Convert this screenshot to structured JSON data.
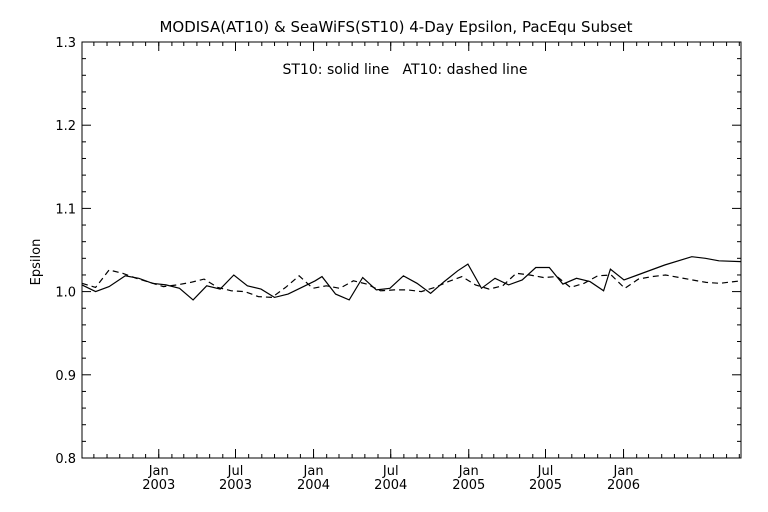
{
  "chart_data": {
    "type": "line",
    "title": "MODISA(AT10) & SeaWiFS(ST10) 4-Day Epsilon, PacEqu Subset",
    "annotation": "ST10: solid line   AT10: dashed line",
    "xlabel": "",
    "ylabel": "Epsilon",
    "xlim": [
      "2002-07-04",
      "2006-10-05"
    ],
    "ylim": [
      0.8,
      1.3
    ],
    "yticks": [
      "0.8",
      "0.9",
      "1.0",
      "1.1",
      "1.2",
      "1.3"
    ],
    "xticks": [
      {
        "date": "2003-01-01",
        "month": "Jan",
        "year": "2003"
      },
      {
        "date": "2003-07-01",
        "month": "Jul",
        "year": "2003"
      },
      {
        "date": "2004-01-01",
        "month": "Jan",
        "year": "2004"
      },
      {
        "date": "2004-07-01",
        "month": "Jul",
        "year": "2004"
      },
      {
        "date": "2005-01-01",
        "month": "Jan",
        "year": "2005"
      },
      {
        "date": "2005-07-01",
        "month": "Jul",
        "year": "2005"
      },
      {
        "date": "2006-01-01",
        "month": "Jan",
        "year": "2006"
      }
    ],
    "grid": false,
    "series": [
      {
        "name": "ST10",
        "style": "solid",
        "points": [
          [
            "2002-07-04",
            1.008
          ],
          [
            "2002-08-05",
            1.0
          ],
          [
            "2002-09-06",
            1.006
          ],
          [
            "2002-10-14",
            1.019
          ],
          [
            "2002-11-15",
            1.016
          ],
          [
            "2002-12-17",
            1.01
          ],
          [
            "2003-01-18",
            1.008
          ],
          [
            "2003-02-19",
            1.004
          ],
          [
            "2003-03-23",
            0.99
          ],
          [
            "2003-04-24",
            1.007
          ],
          [
            "2003-05-26",
            1.003
          ],
          [
            "2003-06-27",
            1.02
          ],
          [
            "2003-07-29",
            1.007
          ],
          [
            "2003-08-30",
            1.003
          ],
          [
            "2003-10-01",
            0.993
          ],
          [
            "2003-11-02",
            0.997
          ],
          [
            "2003-12-04",
            1.005
          ],
          [
            "2004-01-05",
            1.013
          ],
          [
            "2004-01-21",
            1.018
          ],
          [
            "2004-02-22",
            0.997
          ],
          [
            "2004-03-25",
            0.99
          ],
          [
            "2004-04-26",
            1.017
          ],
          [
            "2004-05-28",
            1.002
          ],
          [
            "2004-06-29",
            1.004
          ],
          [
            "2004-07-31",
            1.019
          ],
          [
            "2004-09-01",
            1.01
          ],
          [
            "2004-10-03",
            0.998
          ],
          [
            "2004-11-04",
            1.012
          ],
          [
            "2004-12-06",
            1.025
          ],
          [
            "2004-12-30",
            1.033
          ],
          [
            "2005-01-31",
            1.004
          ],
          [
            "2005-03-04",
            1.016
          ],
          [
            "2005-04-05",
            1.008
          ],
          [
            "2005-05-07",
            1.014
          ],
          [
            "2005-06-08",
            1.029
          ],
          [
            "2005-07-10",
            1.029
          ],
          [
            "2005-08-11",
            1.009
          ],
          [
            "2005-09-12",
            1.016
          ],
          [
            "2005-10-14",
            1.012
          ],
          [
            "2005-11-15",
            1.001
          ],
          [
            "2005-12-01",
            1.027
          ],
          [
            "2006-01-02",
            1.014
          ],
          [
            "2006-02-03",
            1.02
          ],
          [
            "2006-03-07",
            1.026
          ],
          [
            "2006-04-08",
            1.032
          ],
          [
            "2006-06-11",
            1.042
          ],
          [
            "2006-07-13",
            1.04
          ],
          [
            "2006-08-14",
            1.037
          ],
          [
            "2006-10-05",
            1.036
          ]
        ]
      },
      {
        "name": "AT10",
        "style": "dashed",
        "points": [
          [
            "2002-07-04",
            1.01
          ],
          [
            "2002-08-05",
            1.005
          ],
          [
            "2002-09-06",
            1.026
          ],
          [
            "2002-10-08",
            1.022
          ],
          [
            "2002-11-09",
            1.016
          ],
          [
            "2002-12-11",
            1.011
          ],
          [
            "2003-01-12",
            1.006
          ],
          [
            "2003-02-13",
            1.008
          ],
          [
            "2003-03-17",
            1.011
          ],
          [
            "2003-04-18",
            1.015
          ],
          [
            "2003-05-20",
            1.005
          ],
          [
            "2003-06-21",
            1.001
          ],
          [
            "2003-07-23",
            1.0
          ],
          [
            "2003-08-24",
            0.994
          ],
          [
            "2003-09-25",
            0.993
          ],
          [
            "2003-10-27",
            1.005
          ],
          [
            "2003-11-28",
            1.019
          ],
          [
            "2003-12-30",
            1.004
          ],
          [
            "2004-01-31",
            1.007
          ],
          [
            "2004-03-03",
            1.004
          ],
          [
            "2004-04-04",
            1.013
          ],
          [
            "2004-05-06",
            1.009
          ],
          [
            "2004-06-07",
            1.001
          ],
          [
            "2004-07-09",
            1.002
          ],
          [
            "2004-08-10",
            1.002
          ],
          [
            "2004-09-11",
            1.0
          ],
          [
            "2004-10-13",
            1.005
          ],
          [
            "2004-11-14",
            1.012
          ],
          [
            "2004-12-16",
            1.018
          ],
          [
            "2005-01-17",
            1.008
          ],
          [
            "2005-02-18",
            1.003
          ],
          [
            "2005-03-22",
            1.007
          ],
          [
            "2005-04-23",
            1.022
          ],
          [
            "2005-05-25",
            1.02
          ],
          [
            "2005-06-26",
            1.017
          ],
          [
            "2005-07-28",
            1.018
          ],
          [
            "2005-08-29",
            1.005
          ],
          [
            "2005-09-30",
            1.01
          ],
          [
            "2005-11-01",
            1.019
          ],
          [
            "2005-12-03",
            1.02
          ],
          [
            "2006-01-04",
            1.004
          ],
          [
            "2006-02-05",
            1.015
          ],
          [
            "2006-03-09",
            1.018
          ],
          [
            "2006-04-10",
            1.02
          ],
          [
            "2006-05-12",
            1.017
          ],
          [
            "2006-06-13",
            1.014
          ],
          [
            "2006-07-15",
            1.011
          ],
          [
            "2006-08-16",
            1.01
          ],
          [
            "2006-10-05",
            1.013
          ]
        ]
      }
    ]
  }
}
